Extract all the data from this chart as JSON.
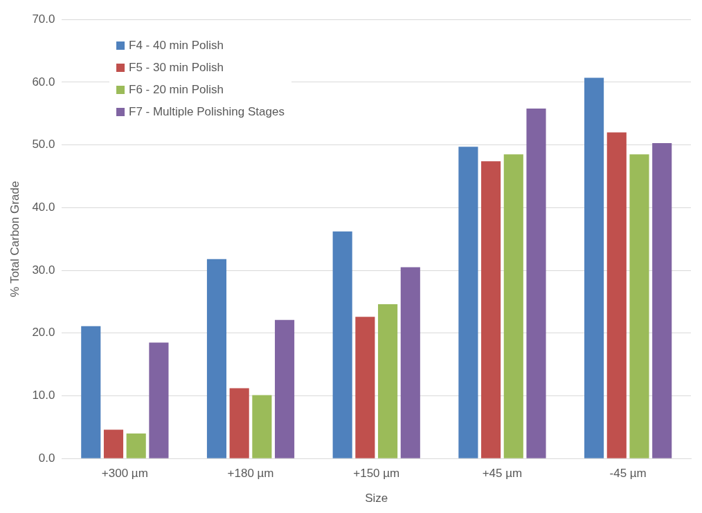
{
  "chart_data": {
    "type": "bar",
    "xlabel": "Size",
    "ylabel": "% Total Carbon Grade",
    "categories": [
      "+300 µm",
      "+180 µm",
      "+150 µm",
      "+45 µm",
      "-45 µm"
    ],
    "series": [
      {
        "name": "F4 - 40 min Polish",
        "color": "#4f81bd",
        "values": [
          21.1,
          31.8,
          36.2,
          49.7,
          60.7
        ]
      },
      {
        "name": "F5 - 30 min Polish",
        "color": "#c0504d",
        "values": [
          4.6,
          11.2,
          22.6,
          47.4,
          52.0
        ]
      },
      {
        "name": "F6 - 20 min Polish",
        "color": "#9bbb59",
        "values": [
          4.0,
          10.1,
          24.6,
          48.5,
          48.5
        ]
      },
      {
        "name": "F7 - Multiple Polishing Stages",
        "color": "#8064a2",
        "values": [
          18.5,
          22.1,
          30.5,
          55.8,
          50.3
        ]
      }
    ],
    "ylim": [
      0,
      70
    ],
    "yticks": [
      {
        "value": 0,
        "label": "0.0"
      },
      {
        "value": 10,
        "label": "10.0"
      },
      {
        "value": 20,
        "label": "20.0"
      },
      {
        "value": 30,
        "label": "30.0"
      },
      {
        "value": 40,
        "label": "40.0"
      },
      {
        "value": 50,
        "label": "50.0"
      },
      {
        "value": 60,
        "label": "60.0"
      },
      {
        "value": 70,
        "label": "70.0"
      }
    ],
    "grid": "y",
    "legend": "top left"
  }
}
